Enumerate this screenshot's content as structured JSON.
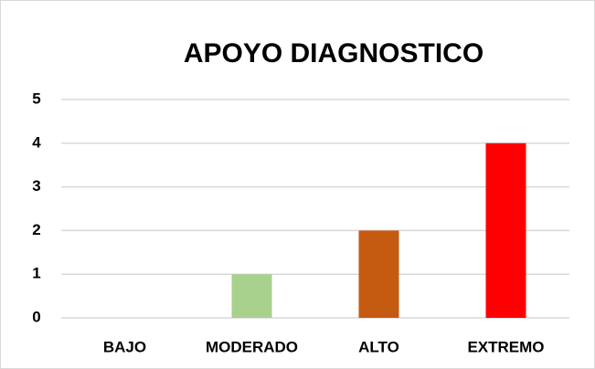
{
  "chart_data": {
    "type": "bar",
    "title": "APOYO DIAGNOSTICO",
    "categories": [
      "BAJO",
      "MODERADO",
      "ALTO",
      "EXTREMO"
    ],
    "values": [
      0,
      1,
      2,
      4
    ],
    "colors": [
      "#5b9bd5",
      "#a9d18e",
      "#c55a11",
      "#ff0000"
    ],
    "ylim": [
      0,
      5
    ],
    "yticks": [
      0,
      1,
      2,
      3,
      4,
      5
    ],
    "grid": true
  }
}
